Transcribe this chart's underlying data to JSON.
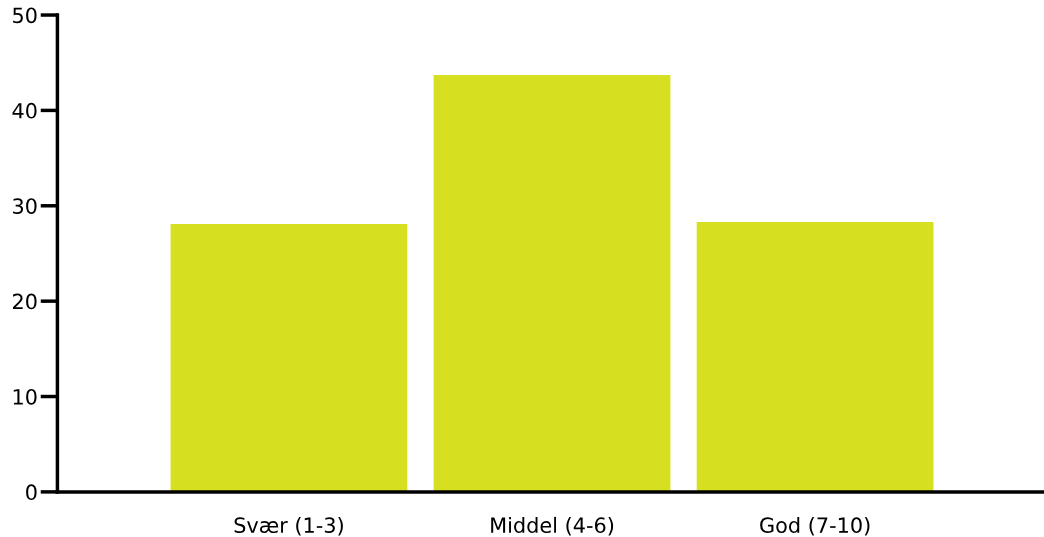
{
  "chart_data": {
    "type": "bar",
    "categories": [
      "Svær (1-3)",
      "Middel (4-6)",
      "God (7-10)"
    ],
    "values": [
      28.1,
      43.7,
      28.3
    ],
    "color": "#d7df21",
    "ylim": [
      0,
      50
    ],
    "yticks": [
      0,
      10,
      20,
      30,
      40,
      50
    ],
    "grid": false
  }
}
